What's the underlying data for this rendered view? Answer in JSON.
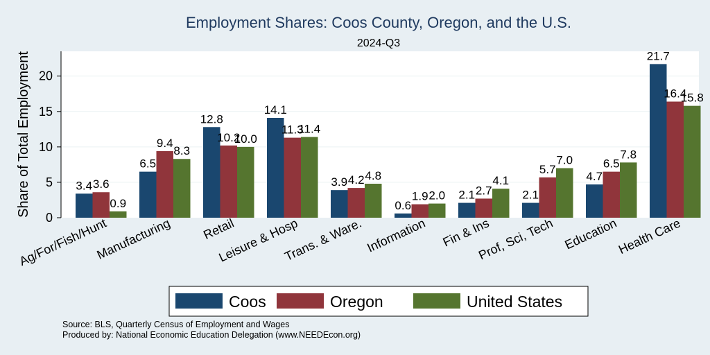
{
  "chart_data": {
    "type": "bar",
    "title": "Employment Shares: Coos County, Oregon, and the U.S.",
    "subtitle": "2024-Q3",
    "ylabel": "Share of Total Employment",
    "xlabel": "",
    "ylim": [
      0,
      23.5
    ],
    "yticks": [
      0,
      5,
      10,
      15,
      20
    ],
    "grid": true,
    "legend_position": "bottom",
    "categories": [
      "Ag/For/Fish/Hunt",
      "Manufacturing",
      "Retail",
      "Leisure & Hosp",
      "Trans. & Ware.",
      "Information",
      "Fin & Ins",
      "Prof, Sci, Tech",
      "Education",
      "Health Care"
    ],
    "series": [
      {
        "name": "Coos",
        "color": "#1a476f",
        "values": [
          3.4,
          6.5,
          12.8,
          14.1,
          3.9,
          0.6,
          2.1,
          2.1,
          4.7,
          21.7
        ],
        "labels": [
          "3.4",
          "6.5",
          "12.8",
          "14.1",
          "3.9",
          "0.6",
          "2.1",
          "2.1",
          "4.7",
          "21.7"
        ]
      },
      {
        "name": "Oregon",
        "color": "#90353b",
        "values": [
          3.6,
          9.4,
          10.2,
          11.3,
          4.2,
          1.9,
          2.7,
          5.7,
          6.5,
          16.4
        ],
        "labels": [
          "3.6",
          "9.4",
          "10.2",
          "11.3",
          "4.2",
          "1.9",
          "2.7",
          "5.7",
          "6.5",
          "16.4"
        ]
      },
      {
        "name": "United States",
        "color": "#55752f",
        "values": [
          0.9,
          8.3,
          10.0,
          11.4,
          4.8,
          2.0,
          4.1,
          7.0,
          7.8,
          15.8
        ],
        "labels": [
          "0.9",
          "8.3",
          "10.0",
          "11.4",
          "4.8",
          "2.0",
          "4.1",
          "7.0",
          "7.8",
          "15.8"
        ]
      }
    ],
    "notes": [
      "Source: BLS, Quarterly Census of Employment and Wages",
      "Produced by: National Economic Education Delegation (www.NEEDEcon.org)"
    ]
  }
}
